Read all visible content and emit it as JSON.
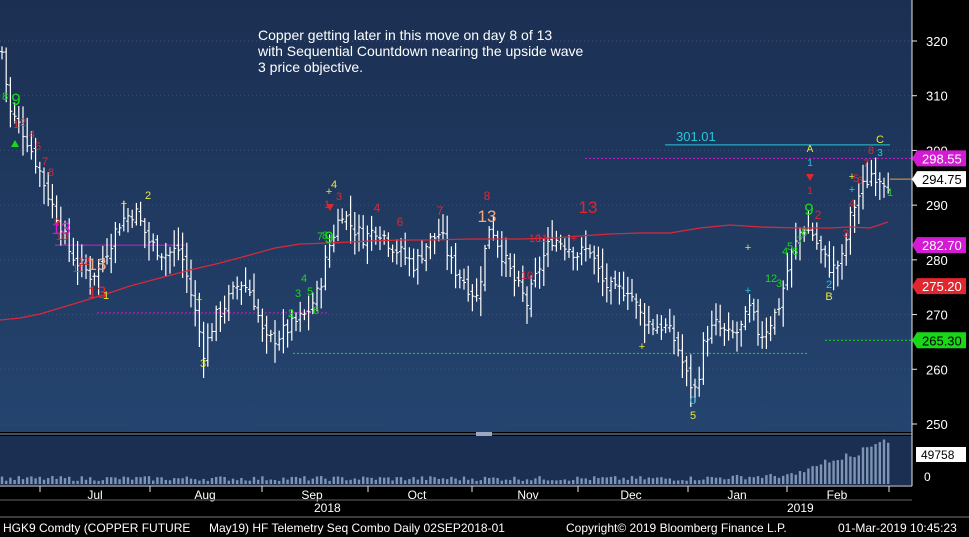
{
  "annotation": [
    "Copper getting later in this move on day 8 of 13",
    "with Sequential Countdown nearing the upside wave",
    "3 price objective."
  ],
  "footer": {
    "ticker": "HGK9 Comdty (COPPER FUTURE",
    "study": "May19) HF Telemetry Seq Combo  Daily 02SEP2018-01",
    "copyright": "Copyright© 2019 Bloomberg Finance L.P.",
    "timestamp": "01-Mar-2019 10:45:23"
  },
  "years": [
    "2018",
    "2019"
  ],
  "colors": {
    "price_panel_top": "#1b2f52",
    "price_panel_bottom": "#24446f",
    "bars": "#ffffff",
    "moving_average": "#d8283b",
    "resistance": "#d21bd2",
    "support": "#18d818",
    "objective": "#27c7d8",
    "last_price_tag": "#ffffff",
    "ma_tag": "#e2262f",
    "resistance_tag": "#d21bd2",
    "support_tag": "#18d818"
  },
  "chart_data": {
    "type": "bar",
    "subtype": "ohlc",
    "ylim": [
      246,
      326
    ],
    "y_ticks": [
      250,
      260,
      270,
      280,
      290,
      300,
      310,
      320
    ],
    "x_month_labels": [
      "Jul",
      "Aug",
      "Sep",
      "Oct",
      "Nov",
      "Dec",
      "Jan",
      "Feb"
    ],
    "moving_average": [
      [
        0,
        320
      ],
      [
        20,
        318
      ],
      [
        40,
        314
      ],
      [
        70,
        305
      ],
      [
        100,
        296
      ],
      [
        130,
        286
      ],
      [
        160,
        278
      ],
      [
        190,
        270
      ],
      [
        220,
        263
      ],
      [
        250,
        255
      ],
      [
        275,
        248
      ],
      [
        300,
        244
      ],
      [
        330,
        243
      ],
      [
        370,
        241
      ],
      [
        400,
        240
      ],
      [
        430,
        240
      ],
      [
        470,
        239
      ],
      [
        520,
        239
      ],
      [
        555,
        238
      ],
      [
        580,
        236
      ],
      [
        610,
        234
      ],
      [
        640,
        233
      ],
      [
        670,
        233
      ],
      [
        700,
        228
      ],
      [
        730,
        225
      ],
      [
        760,
        227
      ],
      [
        800,
        228
      ],
      [
        830,
        228
      ],
      [
        850,
        227
      ],
      [
        870,
        228
      ],
      [
        888,
        222
      ]
    ],
    "price_levels": [
      {
        "label": "298.55",
        "value": 298.55,
        "kind": "resistance"
      },
      {
        "label": "294.75",
        "value": 294.75,
        "kind": "last"
      },
      {
        "label": "282.70",
        "value": 282.7,
        "kind": "resistance"
      },
      {
        "label": "275.20",
        "value": 275.2,
        "kind": "ma"
      },
      {
        "label": "265.30",
        "value": 265.3,
        "kind": "support"
      }
    ],
    "objective": {
      "label": "301.01",
      "value": 301.01
    },
    "volume": {
      "last": "49758",
      "ticks": [
        "0"
      ]
    },
    "setup_labels": [
      {
        "text": "13",
        "x": 61,
        "y": 234,
        "color": "#d21bd2",
        "size": 17
      },
      {
        "text": "13",
        "x": 97,
        "y": 270,
        "color": "#f2a982",
        "size": 17
      },
      {
        "text": "13",
        "x": 97,
        "y": 298,
        "color": "#e2262f",
        "size": 17
      },
      {
        "text": "13",
        "x": 487,
        "y": 222,
        "color": "#f2a982",
        "size": 17
      },
      {
        "text": "13",
        "x": 588,
        "y": 213,
        "color": "#e2262f",
        "size": 17
      },
      {
        "text": "9",
        "x": 16,
        "y": 105,
        "color": "#18d818",
        "size": 17
      },
      {
        "text": "9",
        "x": 329,
        "y": 243,
        "color": "#18d818",
        "size": 17
      },
      {
        "text": "9",
        "x": 809,
        "y": 215,
        "color": "#18d818",
        "size": 17
      },
      {
        "text": "8",
        "x": 487,
        "y": 200,
        "color": "#e2262f",
        "size": 12
      },
      {
        "text": "7",
        "x": 440,
        "y": 215,
        "color": "#e2262f",
        "size": 12
      },
      {
        "text": "6",
        "x": 400,
        "y": 226,
        "color": "#e2262f",
        "size": 12
      },
      {
        "text": "4",
        "x": 377,
        "y": 212,
        "color": "#e2262f",
        "size": 12
      },
      {
        "text": "3",
        "x": 203,
        "y": 367,
        "color": "#e8e83a",
        "size": 11
      },
      {
        "text": "2",
        "x": 148,
        "y": 199,
        "color": "#e8e83a",
        "size": 11
      },
      {
        "text": "4",
        "x": 334,
        "y": 188,
        "color": "#e8e83a",
        "size": 11
      },
      {
        "text": "A",
        "x": 810,
        "y": 152,
        "color": "#e8e83a",
        "size": 10
      },
      {
        "text": "B",
        "x": 829,
        "y": 300,
        "color": "#e8e83a",
        "size": 11
      },
      {
        "text": "C",
        "x": 880,
        "y": 143,
        "color": "#e8e83a",
        "size": 11
      },
      {
        "text": "1",
        "x": 810,
        "y": 166,
        "color": "#27c7d8",
        "size": 10
      },
      {
        "text": "1",
        "x": 810,
        "y": 194,
        "color": "#e2262f",
        "size": 10
      },
      {
        "text": "2",
        "x": 829,
        "y": 288,
        "color": "#27c7d8",
        "size": 11
      },
      {
        "text": "3",
        "x": 880,
        "y": 156,
        "color": "#27c7d8",
        "size": 10
      },
      {
        "text": "8",
        "x": 871,
        "y": 154,
        "color": "#e2262f",
        "size": 11
      },
      {
        "text": "7",
        "x": 866,
        "y": 167,
        "color": "#e2262f",
        "size": 11
      },
      {
        "text": "1",
        "x": 890,
        "y": 196,
        "color": "#18d818",
        "size": 11
      },
      {
        "text": "0",
        "x": 693,
        "y": 404,
        "color": "#27c7d8",
        "size": 11
      },
      {
        "text": "5",
        "x": 693,
        "y": 419,
        "color": "#e8e83a",
        "size": 11
      },
      {
        "text": "2",
        "x": 818,
        "y": 219,
        "color": "#e2262f",
        "size": 12
      },
      {
        "text": "3",
        "x": 846,
        "y": 237,
        "color": "#e2262f",
        "size": 11
      },
      {
        "text": "4",
        "x": 852,
        "y": 207,
        "color": "#e2262f",
        "size": 11
      },
      {
        "text": "5",
        "x": 856,
        "y": 182,
        "color": "#e2262f",
        "size": 11
      },
      {
        "text": "6",
        "x": 860,
        "y": 184,
        "color": "#e2262f",
        "size": 11
      },
      {
        "text": "10",
        "x": 62,
        "y": 240,
        "color": "#e2262f",
        "size": 11
      },
      {
        "text": "9",
        "x": 57,
        "y": 226,
        "color": "#e2262f",
        "size": 11
      },
      {
        "text": "8",
        "x": 51,
        "y": 176,
        "color": "#e2262f",
        "size": 11
      },
      {
        "text": "7",
        "x": 45,
        "y": 165,
        "color": "#e2262f",
        "size": 11
      },
      {
        "text": "5",
        "x": 38,
        "y": 150,
        "color": "#e2262f",
        "size": 11
      },
      {
        "text": "4",
        "x": 32,
        "y": 138,
        "color": "#e2262f",
        "size": 11
      },
      {
        "text": "2",
        "x": 23,
        "y": 126,
        "color": "#e2262f",
        "size": 11
      },
      {
        "text": "1",
        "x": 16,
        "y": 128,
        "color": "#e2262f",
        "size": 11
      },
      {
        "text": "8",
        "x": 5,
        "y": 100,
        "color": "#18d818",
        "size": 11
      },
      {
        "text": "11",
        "x": 78,
        "y": 272,
        "color": "#e2262f",
        "size": 11
      },
      {
        "text": "12",
        "x": 84,
        "y": 265,
        "color": "#e2262f",
        "size": 11
      },
      {
        "text": "1",
        "x": 106,
        "y": 299,
        "color": "#e8e83a",
        "size": 11
      },
      {
        "text": "1",
        "x": 327,
        "y": 208,
        "color": "#e2262f",
        "size": 11
      },
      {
        "text": "3",
        "x": 339,
        "y": 200,
        "color": "#e2262f",
        "size": 11
      },
      {
        "text": "2",
        "x": 291,
        "y": 317,
        "color": "#18d818",
        "size": 11
      },
      {
        "text": "3",
        "x": 298,
        "y": 297,
        "color": "#18d818",
        "size": 11
      },
      {
        "text": "4",
        "x": 304,
        "y": 282,
        "color": "#18d818",
        "size": 11
      },
      {
        "text": "5",
        "x": 310,
        "y": 295,
        "color": "#18d818",
        "size": 11
      },
      {
        "text": "6",
        "x": 316,
        "y": 314,
        "color": "#18d818",
        "size": 11
      },
      {
        "text": "7",
        "x": 320,
        "y": 240,
        "color": "#18d818",
        "size": 11
      },
      {
        "text": "8",
        "x": 325,
        "y": 239,
        "color": "#18d818",
        "size": 11
      },
      {
        "text": "10",
        "x": 535,
        "y": 242,
        "color": "#e2262f",
        "size": 11
      },
      {
        "text": "11",
        "x": 542,
        "y": 242,
        "color": "#e2262f",
        "size": 11
      },
      {
        "text": "10",
        "x": 527,
        "y": 279,
        "color": "#e2262f",
        "size": 11
      },
      {
        "text": "1",
        "x": 768,
        "y": 282,
        "color": "#18d818",
        "size": 11
      },
      {
        "text": "2",
        "x": 774,
        "y": 282,
        "color": "#18d818",
        "size": 11
      },
      {
        "text": "3",
        "x": 779,
        "y": 287,
        "color": "#18d818",
        "size": 11
      },
      {
        "text": "4",
        "x": 785,
        "y": 255,
        "color": "#18d818",
        "size": 11
      },
      {
        "text": "5",
        "x": 790,
        "y": 250,
        "color": "#18d818",
        "size": 11
      },
      {
        "text": "6",
        "x": 795,
        "y": 255,
        "color": "#18d818",
        "size": 11
      },
      {
        "text": "7",
        "x": 800,
        "y": 244,
        "color": "#18d818",
        "size": 11
      },
      {
        "text": "8",
        "x": 804,
        "y": 236,
        "color": "#18d818",
        "size": 11
      }
    ]
  }
}
